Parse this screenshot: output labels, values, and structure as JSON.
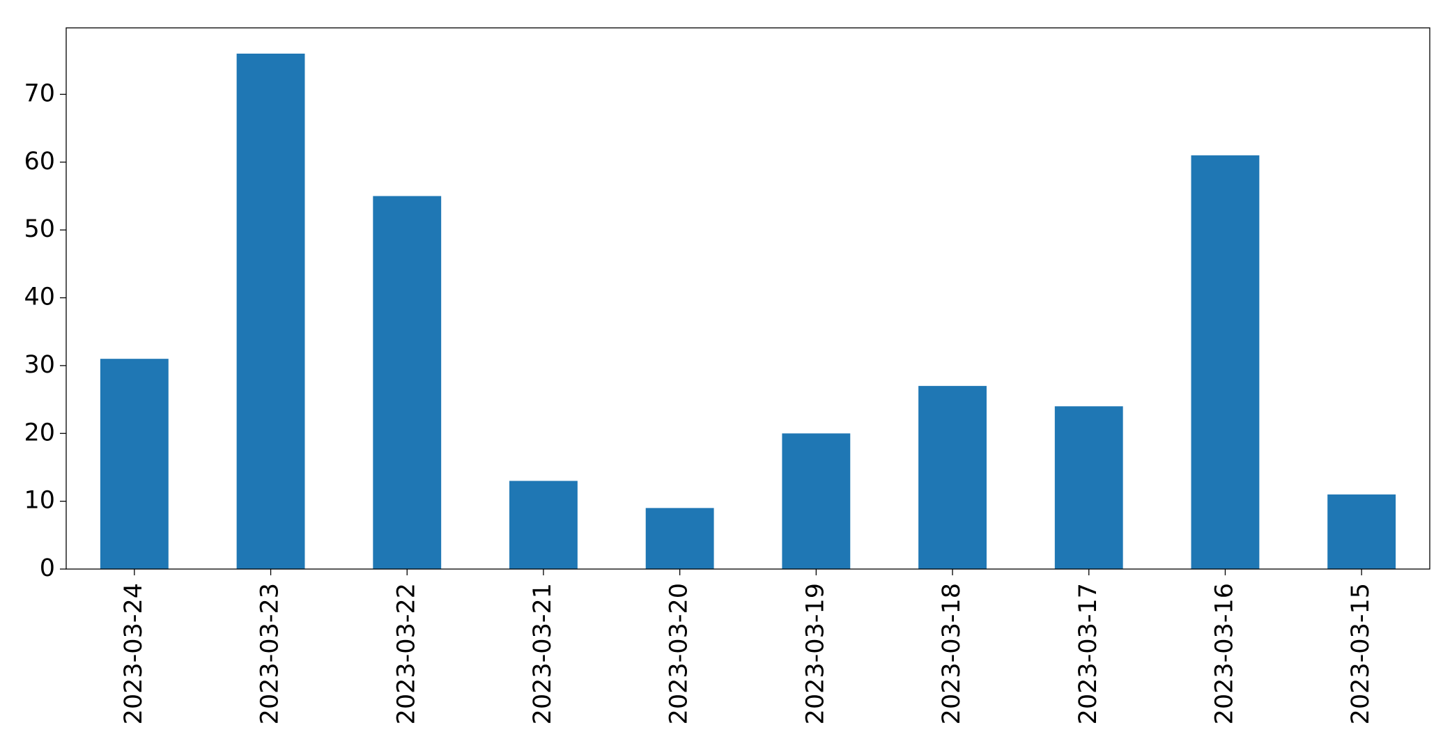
{
  "chart_data": {
    "type": "bar",
    "categories": [
      "2023-03-24",
      "2023-03-23",
      "2023-03-22",
      "2023-03-21",
      "2023-03-20",
      "2023-03-19",
      "2023-03-18",
      "2023-03-17",
      "2023-03-16",
      "2023-03-15"
    ],
    "values": [
      31,
      76,
      55,
      13,
      9,
      20,
      27,
      24,
      61,
      11
    ],
    "color": "#1f77b4",
    "ylim": [
      0,
      79.8
    ],
    "yticks": [
      0,
      10,
      20,
      30,
      40,
      50,
      60,
      70
    ],
    "grid": false
  }
}
